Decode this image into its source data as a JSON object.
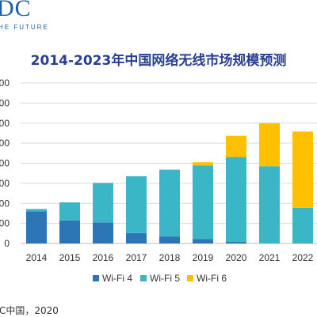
{
  "logo": {
    "text": "DC",
    "tagline": "HE FUTURE"
  },
  "source": "C中国，2020",
  "chart_data": {
    "type": "bar",
    "stacked": true,
    "title": "2014-2023年中国网络无线市场规模预测",
    "xlabel": "",
    "ylabel": "",
    "categories": [
      "2014",
      "2015",
      "2016",
      "2017",
      "2018",
      "2019",
      "2020",
      "2021",
      "2022"
    ],
    "y_tick_labels": [
      "00",
      "00",
      "00",
      "00",
      "00",
      "00",
      "00",
      "00",
      "0"
    ],
    "ylim": [
      0,
      8
    ],
    "grid": true,
    "legend_position": "bottom",
    "series": [
      {
        "name": "Wi-Fi 4",
        "color": "#2e75b6",
        "values": [
          1.6,
          1.15,
          1.05,
          0.52,
          0.35,
          0.22,
          0.08,
          0,
          0
        ]
      },
      {
        "name": "Wi-Fi 5",
        "color": "#3bb6c6",
        "values": [
          0.12,
          0.9,
          1.97,
          2.83,
          3.33,
          3.67,
          4.23,
          3.85,
          1.78
        ]
      },
      {
        "name": "Wi-Fi 6",
        "color": "#ffc000",
        "values": [
          0,
          0,
          0,
          0,
          0,
          0.16,
          1.06,
          2.15,
          3.8
        ]
      }
    ]
  }
}
